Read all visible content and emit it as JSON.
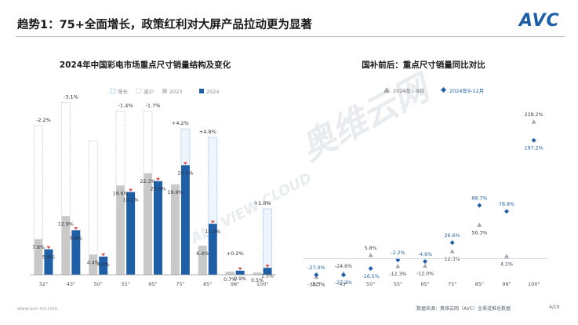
{
  "header": {
    "title": "趋势1：75+全面增长，政策红利对大屏产品拉动更为显著",
    "logo_text": "AVC"
  },
  "watermark": {
    "text_main": "奥维云网",
    "text_sub": "ALL VIEW CLOUD"
  },
  "footer": {
    "website": "www.avc-mr.com",
    "source": "数据来源：奥维云网（AVC）全渠道推总数据",
    "page": "4/10"
  },
  "chart_data": [
    {
      "type": "bar",
      "title": "2024年中国彩电市场重点尺寸销量结构及变化",
      "legend": [
        "增长",
        "减少",
        "2023",
        "2024"
      ],
      "categories": [
        "32\"",
        "43\"",
        "50\"",
        "55\"",
        "65\"",
        "75\"",
        "85\"",
        "98\"",
        "100\""
      ],
      "series": [
        {
          "name": "2023",
          "values": [
            7.8,
            12.9,
            4.4,
            19.6,
            22.3,
            19.9,
            6.4,
            0.7,
            0.5
          ],
          "labels": [
            "7.8%",
            "12.9%",
            "4.4%",
            "19.6%",
            "22.3%",
            "19.9%",
            "6.4%",
            "0.7%",
            "0.5%"
          ]
        },
        {
          "name": "2024",
          "values": [
            5.6,
            9.8,
            4.0,
            18.2,
            20.6,
            24.1,
            11.2,
            0.9,
            1.5
          ],
          "labels": [
            "5.6%",
            "9.8%",
            "4.0%",
            "18.2%",
            "20.6%",
            "24.1%",
            "11.2%",
            "0.9%",
            "1.5%"
          ]
        }
      ],
      "change_values": [
        -2.2,
        -3.1,
        -0.4,
        -1.4,
        -1.7,
        4.2,
        4.8,
        0.2,
        1.0
      ],
      "change_labels": [
        "-2.2%",
        "-3.1%",
        "",
        "-1.4%",
        "-1.7%",
        "+4.2%",
        "+4.8%",
        "+0.2%",
        "+1.0%"
      ],
      "ylim": [
        0,
        38
      ]
    },
    {
      "type": "scatter",
      "title": "国补前后：重点尺寸销量同比对比",
      "categories": [
        "32\"",
        "43\"",
        "50\"",
        "55\"",
        "65\"",
        "75\"",
        "85\"",
        "98\"",
        "100\""
      ],
      "series": [
        {
          "name": "2024年1-8月",
          "values": [
            -30.3,
            -24.6,
            5.8,
            -12.3,
            -12.0,
            12.3,
            56.3,
            4.1,
            228.2
          ],
          "labels": [
            "-30.3%",
            "-24.6%",
            "5.8%",
            "-12.3%",
            "-12.0%",
            "12.3%",
            "56.3%",
            "4.1%",
            "228.2%"
          ]
        },
        {
          "name": "2024年9-12月",
          "values": [
            -27.0,
            -27.2,
            -16.5,
            -2.2,
            -4.6,
            26.6,
            88.7,
            78.8,
            197.2
          ],
          "labels": [
            "-27.0%",
            "-27.2%",
            "-16.5%",
            "-2.2%",
            "-4.6%",
            "26.6%",
            "88.7%",
            "78.8%",
            "197.2%"
          ]
        }
      ],
      "ylim": [
        -40,
        240
      ]
    }
  ]
}
